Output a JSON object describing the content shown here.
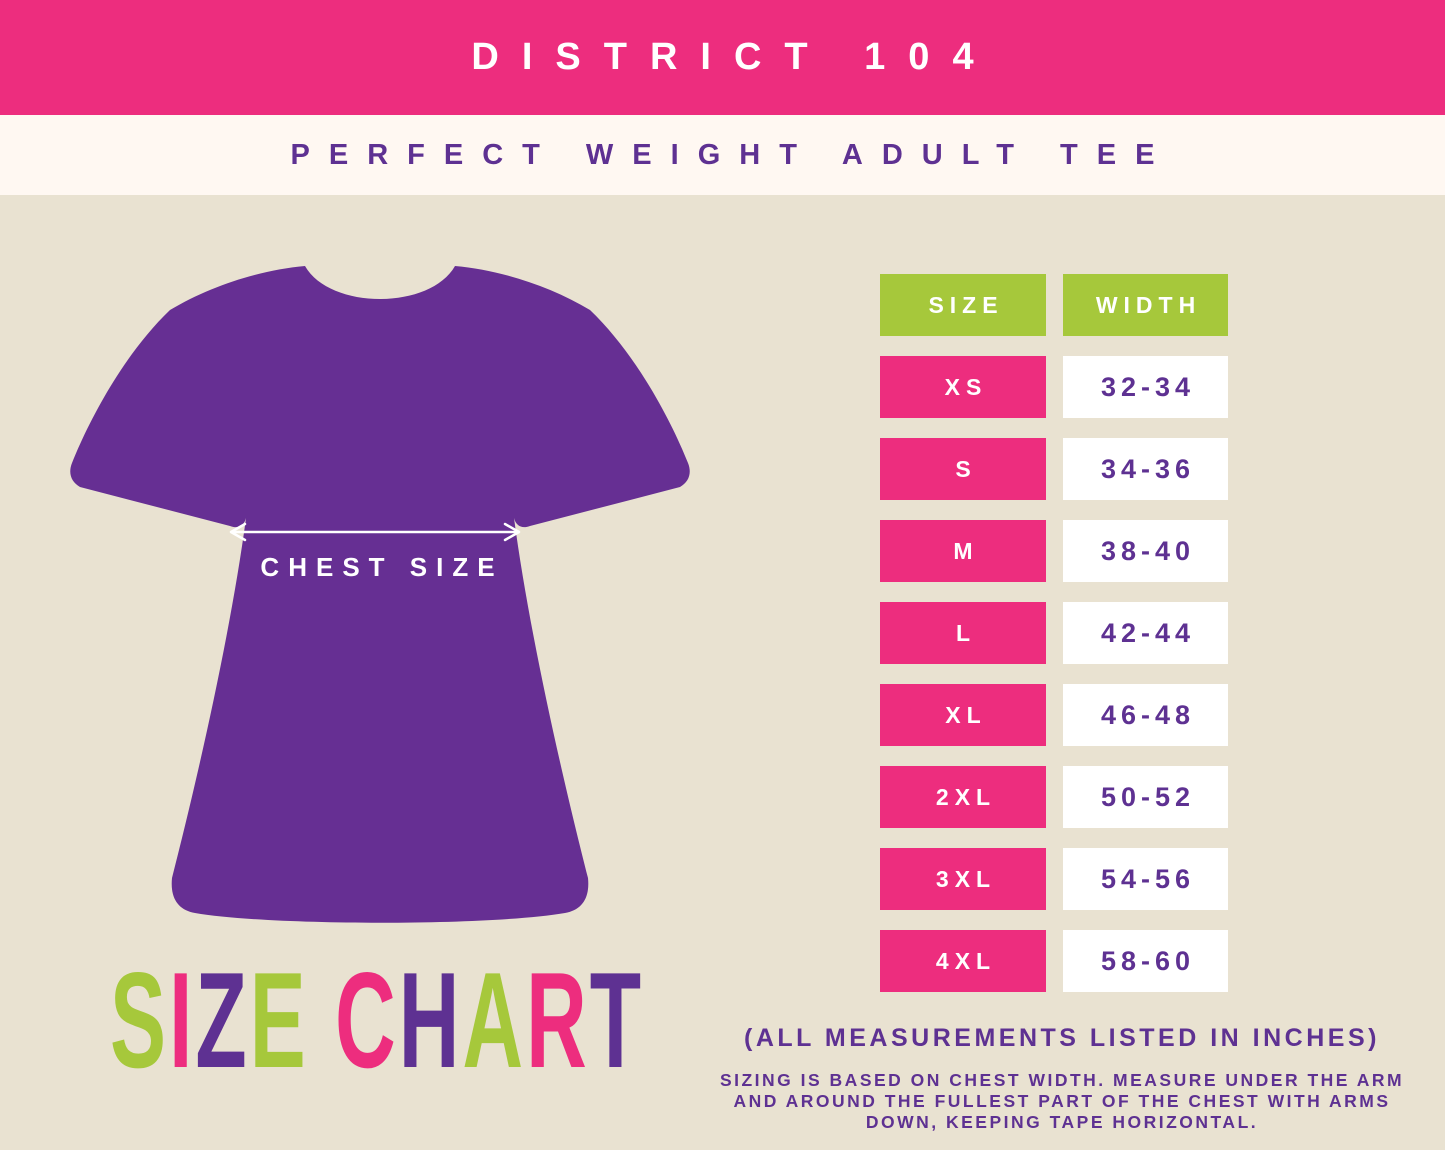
{
  "banner": {
    "title": "DISTRICT 104"
  },
  "subtitle": "PERFECT WEIGHT ADULT TEE",
  "shirt": {
    "label": "CHEST SIZE"
  },
  "size_chart_title": {
    "text": "SIZE CHART",
    "letters": [
      {
        "ch": "S",
        "color": "#A6C83B"
      },
      {
        "ch": "I",
        "color": "#ED2D7E"
      },
      {
        "ch": "Z",
        "color": "#5E3192"
      },
      {
        "ch": "E",
        "color": "#A6C83B"
      },
      {
        "ch": " ",
        "color": "#A6C83B"
      },
      {
        "ch": "C",
        "color": "#ED2D7E"
      },
      {
        "ch": "H",
        "color": "#5E3192"
      },
      {
        "ch": "A",
        "color": "#A6C83B"
      },
      {
        "ch": "R",
        "color": "#ED2D7E"
      },
      {
        "ch": "T",
        "color": "#5E3192"
      }
    ]
  },
  "table": {
    "headers": [
      {
        "label": "SIZE"
      },
      {
        "label": "WIDTH"
      }
    ],
    "rows": [
      {
        "size": "XS",
        "width": "32-34"
      },
      {
        "size": "S",
        "width": "34-36"
      },
      {
        "size": "M",
        "width": "38-40"
      },
      {
        "size": "L",
        "width": "42-44"
      },
      {
        "size": "XL",
        "width": "46-48"
      },
      {
        "size": "2XL",
        "width": "50-52"
      },
      {
        "size": "3XL",
        "width": "54-56"
      },
      {
        "size": "4XL",
        "width": "58-60"
      }
    ]
  },
  "notes": {
    "units": "(ALL MEASUREMENTS LISTED IN INCHES)",
    "instructions": "SIZING IS BASED ON CHEST WIDTH. MEASURE UNDER THE ARM\nAND AROUND THE FULLEST PART OF THE CHEST WITH ARMS\nDOWN, KEEPING TAPE HORIZONTAL."
  },
  "colors": {
    "brand_pink": "#ED2D7E",
    "green": "#A6C83B",
    "shirt_purple": "#662F93",
    "text_purple": "#5E3192",
    "bg_beige": "#E9E2D1",
    "strip_cream": "#FFF8F2",
    "white": "#FFFFFF"
  }
}
